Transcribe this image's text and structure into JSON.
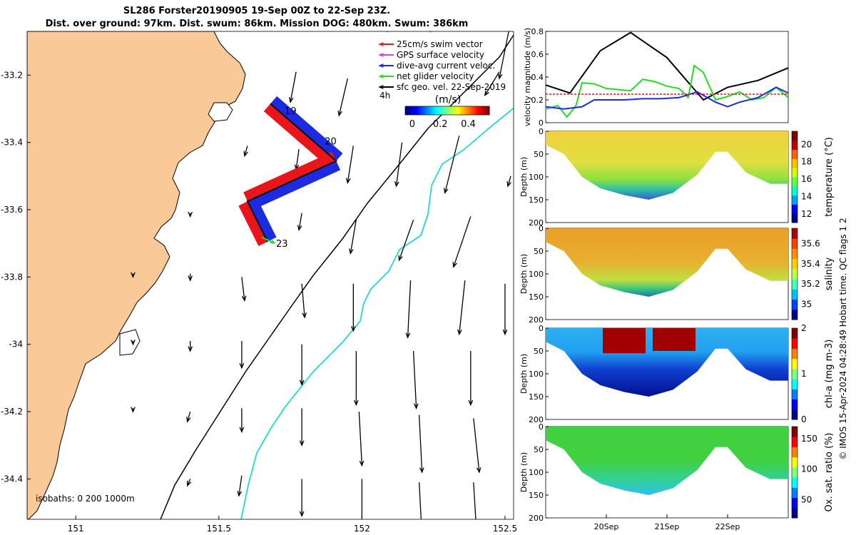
{
  "title": "SL286 Forster20190905 19-Sep 00Z to 22-Sep 23Z.",
  "subtitle": "Dist. over ground: 97km. Dist. swum: 86km. Mission DOG: 480km. Swum: 386km",
  "footer": "© IMOS 15-Apr-2024 04:28:49 Hobart time. QC flags 1  2",
  "colors": {
    "land": "#f9c997",
    "swim": "#e8161b",
    "gps": "#e633e6",
    "current": "#1d2be0",
    "net": "#22dd22",
    "sfc": "#000000",
    "iso200": "#000000",
    "iso1000": "#22d8d8"
  },
  "chart_data": [
    {
      "type": "map",
      "name": "map",
      "xlim": [
        150.83,
        152.53
      ],
      "ylim": [
        -34.52,
        -33.07
      ],
      "xticks": [
        151,
        151.5,
        152,
        152.5
      ],
      "xticklabels": [
        "151",
        "151.5",
        "152",
        "152.5"
      ],
      "yticks": [
        -33.2,
        -33.4,
        -33.6,
        -33.8,
        -34,
        -34.2,
        -34.4
      ],
      "yticklabels": [
        "-33.2",
        "-33.4",
        "-33.6",
        "-33.8",
        "-34",
        "-34.2",
        "-34.4"
      ],
      "legend": [
        {
          "label": "25cm/s swim vector",
          "color": "#e8161b"
        },
        {
          "label": "GPS surface velocity",
          "color": "#e633e6"
        },
        {
          "label": "dive-avg current veloc.",
          "color": "#1d2be0"
        },
        {
          "label": "net glider velocity",
          "color": "#22dd22"
        },
        {
          "label": "sfc geo. vel. 22-Sep-2019",
          "color": "#000000"
        }
      ],
      "legend_extra": "4h",
      "colorbar": {
        "label": "(m/s)",
        "ticks": [
          0,
          0.2,
          0.4
        ],
        "ticklabels": [
          "0",
          "0.2",
          "0.4"
        ],
        "range": [
          -0.05,
          0.55
        ]
      },
      "isobaths_label": "isobaths: 0   200  1000m",
      "track": [
        [
          151.68,
          -33.285
        ],
        [
          151.91,
          -33.455
        ],
        [
          151.6,
          -33.575
        ],
        [
          151.67,
          -33.695
        ]
      ],
      "track_day_labels": [
        {
          "label": "19",
          "lon": 151.72,
          "lat": -33.305
        },
        {
          "label": "20",
          "lon": 151.86,
          "lat": -33.395
        },
        {
          "label": "23",
          "lon": 151.69,
          "lat": -33.7
        }
      ],
      "arrows": [
        {
          "lon": 151.77,
          "lat": -33.19,
          "dlon": -0.02,
          "dlat": -0.09
        },
        {
          "lon": 151.95,
          "lat": -33.21,
          "dlon": -0.03,
          "dlat": -0.11
        },
        {
          "lon": 152.14,
          "lat": -33.02,
          "dlon": -0.05,
          "dlat": -0.05
        },
        {
          "lon": 152.28,
          "lat": -33.01,
          "dlon": -0.04,
          "dlat": -0.06
        },
        {
          "lon": 152.52,
          "lat": -33.04,
          "dlon": -0.04,
          "dlat": -0.17
        },
        {
          "lon": 151.6,
          "lat": -33.41,
          "dlon": -0.01,
          "dlat": -0.03
        },
        {
          "lon": 151.78,
          "lat": -33.42,
          "dlon": -0.01,
          "dlat": -0.06
        },
        {
          "lon": 151.97,
          "lat": -33.41,
          "dlon": -0.02,
          "dlat": -0.11
        },
        {
          "lon": 152.14,
          "lat": -33.4,
          "dlon": -0.02,
          "dlat": -0.13
        },
        {
          "lon": 152.34,
          "lat": -33.38,
          "dlon": -0.05,
          "dlat": -0.17
        },
        {
          "lon": 152.48,
          "lat": -33.19,
          "dlon": -0.05,
          "dlat": -0.07
        },
        {
          "lon": 151.4,
          "lat": -33.61,
          "dlon": 0.0,
          "dlat": -0.01
        },
        {
          "lon": 151.79,
          "lat": -33.61,
          "dlon": -0.01,
          "dlat": -0.05
        },
        {
          "lon": 151.98,
          "lat": -33.63,
          "dlon": -0.02,
          "dlat": -0.1
        },
        {
          "lon": 152.18,
          "lat": -33.63,
          "dlon": -0.05,
          "dlat": -0.12
        },
        {
          "lon": 152.38,
          "lat": -33.62,
          "dlon": -0.06,
          "dlat": -0.15
        },
        {
          "lon": 152.52,
          "lat": -33.5,
          "dlon": -0.01,
          "dlat": -0.03
        },
        {
          "lon": 151.2,
          "lat": -33.79,
          "dlon": 0.0,
          "dlat": -0.01
        },
        {
          "lon": 151.4,
          "lat": -33.79,
          "dlon": 0.0,
          "dlat": -0.02
        },
        {
          "lon": 151.58,
          "lat": -33.8,
          "dlon": 0.01,
          "dlat": -0.07
        },
        {
          "lon": 151.79,
          "lat": -33.82,
          "dlon": 0.01,
          "dlat": -0.1
        },
        {
          "lon": 151.97,
          "lat": -33.82,
          "dlon": 0.0,
          "dlat": -0.14
        },
        {
          "lon": 152.17,
          "lat": -33.81,
          "dlon": -0.01,
          "dlat": -0.17
        },
        {
          "lon": 152.36,
          "lat": -33.81,
          "dlon": -0.02,
          "dlat": -0.16
        },
        {
          "lon": 152.5,
          "lat": -33.82,
          "dlon": 0.0,
          "dlat": -0.15
        },
        {
          "lon": 151.2,
          "lat": -33.99,
          "dlon": 0.0,
          "dlat": -0.01
        },
        {
          "lon": 151.4,
          "lat": -33.99,
          "dlon": 0.0,
          "dlat": -0.03
        },
        {
          "lon": 151.58,
          "lat": -33.99,
          "dlon": 0.0,
          "dlat": -0.08
        },
        {
          "lon": 151.79,
          "lat": -34.0,
          "dlon": 0.0,
          "dlat": -0.12
        },
        {
          "lon": 151.98,
          "lat": -34.02,
          "dlon": 0.0,
          "dlat": -0.16
        },
        {
          "lon": 152.18,
          "lat": -34.02,
          "dlon": 0.01,
          "dlat": -0.17
        },
        {
          "lon": 152.38,
          "lat": -34.02,
          "dlon": 0.0,
          "dlat": -0.16
        },
        {
          "lon": 151.2,
          "lat": -34.19,
          "dlon": 0.0,
          "dlat": -0.01
        },
        {
          "lon": 151.4,
          "lat": -34.2,
          "dlon": -0.01,
          "dlat": -0.03
        },
        {
          "lon": 151.58,
          "lat": -34.19,
          "dlon": 0.0,
          "dlat": -0.07
        },
        {
          "lon": 151.79,
          "lat": -34.19,
          "dlon": 0.0,
          "dlat": -0.11
        },
        {
          "lon": 151.99,
          "lat": -34.2,
          "dlon": 0.01,
          "dlat": -0.16
        },
        {
          "lon": 152.2,
          "lat": -34.21,
          "dlon": 0.01,
          "dlat": -0.17
        },
        {
          "lon": 152.39,
          "lat": -34.22,
          "dlon": 0.02,
          "dlat": -0.16
        },
        {
          "lon": 151.4,
          "lat": -34.4,
          "dlon": -0.01,
          "dlat": -0.02
        },
        {
          "lon": 151.58,
          "lat": -34.39,
          "dlon": -0.01,
          "dlat": -0.06
        },
        {
          "lon": 151.79,
          "lat": -34.4,
          "dlon": 0.0,
          "dlat": -0.11
        },
        {
          "lon": 152.0,
          "lat": -34.4,
          "dlon": 0.0,
          "dlat": -0.14
        },
        {
          "lon": 152.2,
          "lat": -34.41,
          "dlon": 0.01,
          "dlat": -0.16
        },
        {
          "lon": 152.39,
          "lat": -34.41,
          "dlon": 0.01,
          "dlat": -0.14
        }
      ]
    },
    {
      "type": "line",
      "name": "velocity",
      "ylabel": "velocity magnitude (m/s)",
      "ylim": [
        0,
        0.8
      ],
      "yticks": [
        0,
        0.2,
        0.4,
        0.6,
        0.8
      ],
      "yticklabels": [
        "0",
        "0.2",
        "0.4",
        "0.6",
        "0.8"
      ],
      "series": [
        {
          "color": "#000000",
          "x": [
            0,
            0.4,
            0.9,
            1.4,
            2.0,
            2.6,
            3.0,
            3.5,
            4.0
          ],
          "y": [
            0.33,
            0.26,
            0.63,
            0.79,
            0.57,
            0.2,
            0.31,
            0.37,
            0.48
          ]
        },
        {
          "color": "#22dd22",
          "x": [
            0,
            0.2,
            0.35,
            0.5,
            0.6,
            0.8,
            1.0,
            1.4,
            1.6,
            1.8,
            2.0,
            2.2,
            2.35,
            2.45,
            2.6,
            2.8,
            3.0,
            3.2,
            3.4,
            3.6,
            3.8,
            4.0
          ],
          "y": [
            0.12,
            0.15,
            0.05,
            0.15,
            0.35,
            0.34,
            0.3,
            0.28,
            0.38,
            0.36,
            0.32,
            0.3,
            0.22,
            0.5,
            0.44,
            0.2,
            0.23,
            0.27,
            0.2,
            0.22,
            0.31,
            0.22
          ]
        },
        {
          "color": "#1d2be0",
          "x": [
            0,
            0.3,
            0.6,
            0.8,
            1.0,
            1.3,
            1.6,
            1.9,
            2.2,
            2.5,
            2.8,
            3.0,
            3.2,
            3.5,
            3.8,
            4.0
          ],
          "y": [
            0.14,
            0.12,
            0.14,
            0.2,
            0.2,
            0.2,
            0.21,
            0.21,
            0.22,
            0.27,
            0.18,
            0.14,
            0.18,
            0.22,
            0.31,
            0.26
          ]
        },
        {
          "color": "#e8161b",
          "x": [
            0,
            4.0
          ],
          "y": [
            0.25,
            0.25
          ]
        }
      ]
    },
    {
      "type": "heatmap",
      "name": "temperature",
      "ylabel": "Depth (m)",
      "colorbar_label": "temperature (°C)",
      "clim": [
        11,
        21.5
      ],
      "cticks": [
        12,
        14,
        16,
        18,
        20
      ],
      "cticklabels": [
        "12",
        "14",
        "16",
        "18",
        "20"
      ],
      "ylim": [
        200,
        0
      ],
      "yticks": [
        0,
        50,
        100,
        150,
        200
      ],
      "yticklabels": [
        "0",
        "50",
        "100",
        "150",
        "200"
      ]
    },
    {
      "type": "heatmap",
      "name": "salinity",
      "ylabel": "Depth (m)",
      "colorbar_label": "salinity",
      "clim": [
        34.85,
        35.75
      ],
      "cticks": [
        35,
        35.2,
        35.4,
        35.6
      ],
      "cticklabels": [
        "35",
        "35.2",
        "35.4",
        "35.6"
      ],
      "ylim": [
        200,
        0
      ],
      "yticks": [
        0,
        50,
        100,
        150,
        200
      ],
      "yticklabels": [
        "0",
        "50",
        "100",
        "150",
        "200"
      ]
    },
    {
      "type": "heatmap",
      "name": "chla",
      "ylabel": "Depth (m)",
      "colorbar_label": "chl-a (mg m-3)",
      "clim": [
        0,
        2
      ],
      "cticks": [
        0,
        1,
        2
      ],
      "cticklabels": [
        "0",
        "1",
        "2"
      ],
      "ylim": [
        200,
        0
      ],
      "yticks": [
        0,
        50,
        100,
        150,
        200
      ],
      "yticklabels": [
        "0",
        "50",
        "100",
        "150",
        "200"
      ]
    },
    {
      "type": "heatmap",
      "name": "oxygen",
      "ylabel": "Depth (m)",
      "colorbar_label": "Ox. sat. ratio (%)",
      "clim": [
        20,
        170
      ],
      "cticks": [
        50,
        100,
        150
      ],
      "cticklabels": [
        "50",
        "100",
        "150"
      ],
      "ylim": [
        200,
        0
      ],
      "yticks": [
        0,
        50,
        100,
        150,
        200
      ],
      "yticklabels": [
        "0",
        "50",
        "100",
        "150",
        "200"
      ],
      "xticks": [
        1,
        2,
        3
      ],
      "xticklabels": [
        "20Sep",
        "21Sep",
        "22Sep"
      ]
    }
  ]
}
